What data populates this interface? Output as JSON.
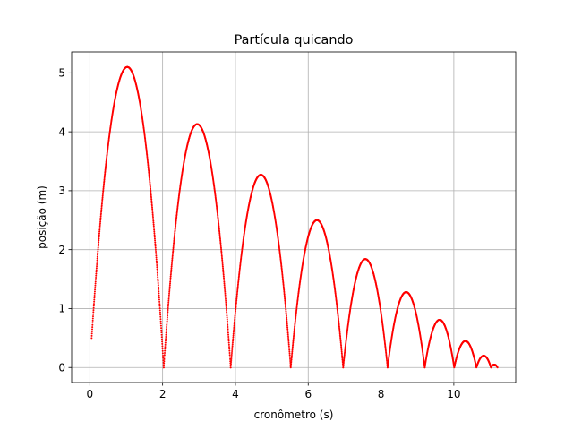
{
  "colors": {
    "marker": "#ff0000",
    "grid": "#b0b0b0",
    "axes": "#000000",
    "background": "#ffffff"
  },
  "chart_data": {
    "type": "scatter",
    "title": "Partícula quicando",
    "xlabel": "cronômetro (s)",
    "ylabel": "posição (m)",
    "xlim": [
      -0.5,
      11.7
    ],
    "ylim": [
      -0.255,
      5.355
    ],
    "grid": true,
    "xticks": [
      0,
      2,
      4,
      6,
      8,
      10
    ],
    "yticks": [
      0,
      1,
      2,
      3,
      4,
      5
    ],
    "marker": "dot",
    "arcs": [
      {
        "t_start": 0.05,
        "t_end": 2.03,
        "t_peak": 1.03,
        "y_peak": 5.1,
        "y_start": 0.5
      },
      {
        "t_start": 2.03,
        "t_end": 3.87,
        "t_peak": 2.95,
        "y_peak": 4.13,
        "y_start": 0
      },
      {
        "t_start": 3.87,
        "t_end": 5.52,
        "t_peak": 4.7,
        "y_peak": 3.27,
        "y_start": 0
      },
      {
        "t_start": 5.52,
        "t_end": 6.96,
        "t_peak": 6.24,
        "y_peak": 2.5,
        "y_start": 0
      },
      {
        "t_start": 6.96,
        "t_end": 8.18,
        "t_peak": 7.57,
        "y_peak": 1.84,
        "y_start": 0
      },
      {
        "t_start": 8.18,
        "t_end": 9.2,
        "t_peak": 8.69,
        "y_peak": 1.28,
        "y_start": 0
      },
      {
        "t_start": 9.2,
        "t_end": 10.01,
        "t_peak": 9.61,
        "y_peak": 0.81,
        "y_start": 0
      },
      {
        "t_start": 10.01,
        "t_end": 10.62,
        "t_peak": 10.32,
        "y_peak": 0.45,
        "y_start": 0
      },
      {
        "t_start": 10.62,
        "t_end": 11.02,
        "t_peak": 10.82,
        "y_peak": 0.2,
        "y_start": 0
      },
      {
        "t_start": 11.02,
        "t_end": 11.2,
        "t_peak": 11.11,
        "y_peak": 0.05,
        "y_start": 0
      }
    ],
    "sample_dt": 0.004
  }
}
